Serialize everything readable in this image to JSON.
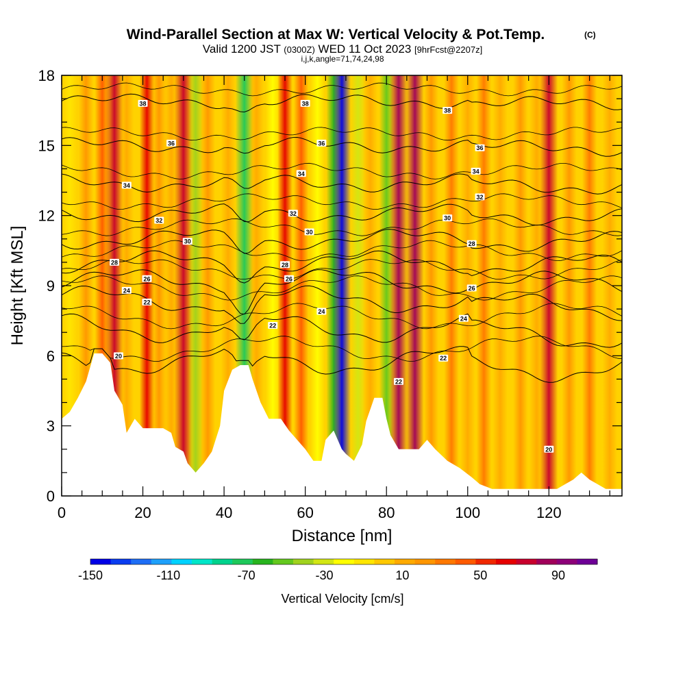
{
  "chart_data": {
    "type": "heatmap",
    "title": "Wind-Parallel Section at Max W: Vertical Velocity & Pot.Temp.",
    "title_mark": "(C)",
    "subtitle_main": "Valid 1200 JST",
    "subtitle_utc": "(0300Z)",
    "subtitle_date": "WED 11 Oct 2023",
    "subtitle_fcst": "[9hrFcst@2207z]",
    "subtitle2": "i,j,k,angle=71,74,24,98",
    "xlabel": "Distance [nm]",
    "ylabel": "Height [Kft MSL]",
    "xlim": [
      0,
      138
    ],
    "ylim": [
      0,
      18
    ],
    "xticks": [
      0,
      20,
      40,
      60,
      80,
      100,
      120
    ],
    "yticks": [
      0,
      3,
      6,
      9,
      12,
      15,
      18
    ],
    "colorbar": {
      "label": "Vertical Velocity [cm/s]",
      "range": [
        -150,
        110
      ],
      "ticks": [
        -150,
        -110,
        -70,
        -30,
        10,
        50,
        90
      ],
      "colors": [
        "#0000e6",
        "#0a3cf0",
        "#1e6ef5",
        "#1ea0fa",
        "#00d2ff",
        "#00e6c8",
        "#00d28c",
        "#1ec85a",
        "#28b41e",
        "#64c81e",
        "#a0d21e",
        "#d2e614",
        "#ffff00",
        "#ffe600",
        "#ffc800",
        "#ffaa00",
        "#ff9600",
        "#ff7800",
        "#ff5a00",
        "#f02800",
        "#e60000",
        "#c8002d",
        "#a0005a",
        "#8c0078",
        "#6e0096"
      ]
    },
    "vertical_velocity_streaks": [
      {
        "x": 2,
        "w": -10
      },
      {
        "x": 6,
        "w": 20
      },
      {
        "x": 10,
        "w": 40
      },
      {
        "x": 13,
        "w": 70
      },
      {
        "x": 16,
        "w": 15
      },
      {
        "x": 21,
        "w": 60
      },
      {
        "x": 24,
        "w": 20
      },
      {
        "x": 27,
        "w": 10
      },
      {
        "x": 30,
        "w": 75
      },
      {
        "x": 33,
        "w": -45
      },
      {
        "x": 36,
        "w": 20
      },
      {
        "x": 41,
        "w": 10
      },
      {
        "x": 45,
        "w": -75
      },
      {
        "x": 48,
        "w": 15
      },
      {
        "x": 52,
        "w": -15
      },
      {
        "x": 55,
        "w": 60
      },
      {
        "x": 59,
        "w": 40
      },
      {
        "x": 63,
        "w": -20
      },
      {
        "x": 67,
        "w": -60
      },
      {
        "x": 69,
        "w": -150
      },
      {
        "x": 73,
        "w": -30
      },
      {
        "x": 76,
        "w": 15
      },
      {
        "x": 80,
        "w": -55
      },
      {
        "x": 83,
        "w": 80
      },
      {
        "x": 87,
        "w": 85
      },
      {
        "x": 91,
        "w": 25
      },
      {
        "x": 96,
        "w": 30
      },
      {
        "x": 100,
        "w": 10
      },
      {
        "x": 104,
        "w": 35
      },
      {
        "x": 108,
        "w": 15
      },
      {
        "x": 113,
        "w": 25
      },
      {
        "x": 117,
        "w": 10
      },
      {
        "x": 120,
        "w": 75
      },
      {
        "x": 125,
        "w": 20
      },
      {
        "x": 130,
        "w": 30
      },
      {
        "x": 135,
        "w": 10
      }
    ],
    "terrain_height_kft": [
      [
        0,
        3.3
      ],
      [
        2,
        3.6
      ],
      [
        4,
        4.2
      ],
      [
        6,
        4.9
      ],
      [
        8,
        6.1
      ],
      [
        10,
        6.1
      ],
      [
        12,
        5.7
      ],
      [
        13,
        4.5
      ],
      [
        15,
        3.9
      ],
      [
        16,
        2.7
      ],
      [
        18,
        3.3
      ],
      [
        20,
        2.9
      ],
      [
        22,
        2.9
      ],
      [
        25,
        2.9
      ],
      [
        27,
        2.7
      ],
      [
        28,
        2.1
      ],
      [
        30,
        1.9
      ],
      [
        31,
        1.4
      ],
      [
        33,
        1.0
      ],
      [
        35,
        1.4
      ],
      [
        37,
        1.9
      ],
      [
        39,
        3.0
      ],
      [
        40,
        4.5
      ],
      [
        42,
        5.4
      ],
      [
        44,
        5.6
      ],
      [
        46,
        5.6
      ],
      [
        47,
        5.0
      ],
      [
        49,
        4.0
      ],
      [
        51,
        3.3
      ],
      [
        54,
        3.3
      ],
      [
        56,
        2.8
      ],
      [
        58,
        2.4
      ],
      [
        60,
        2.0
      ],
      [
        62,
        1.5
      ],
      [
        64,
        1.5
      ],
      [
        65,
        2.4
      ],
      [
        67,
        2.8
      ],
      [
        69,
        2.0
      ],
      [
        70,
        1.8
      ],
      [
        72,
        1.5
      ],
      [
        74,
        2.2
      ],
      [
        75,
        3.2
      ],
      [
        77,
        4.2
      ],
      [
        79,
        4.2
      ],
      [
        80,
        3.3
      ],
      [
        81,
        2.6
      ],
      [
        83,
        2.0
      ],
      [
        85,
        2.0
      ],
      [
        88,
        2.0
      ],
      [
        90,
        2.4
      ],
      [
        92,
        2.0
      ],
      [
        95,
        1.5
      ],
      [
        98,
        1.2
      ],
      [
        101,
        0.8
      ],
      [
        103,
        0.5
      ],
      [
        106,
        0.3
      ],
      [
        110,
        0.3
      ],
      [
        118,
        0.3
      ],
      [
        122,
        0.3
      ],
      [
        124,
        0.5
      ],
      [
        126,
        0.7
      ],
      [
        128,
        1.0
      ],
      [
        130,
        0.7
      ],
      [
        132,
        0.5
      ],
      [
        134,
        0.3
      ],
      [
        138,
        0.3
      ]
    ],
    "isentropes": [
      {
        "theta": "38",
        "height_kft": 16.9,
        "amp": 0.35
      },
      {
        "theta": "36",
        "height_kft": 15.0,
        "amp": 0.4
      },
      {
        "theta": "34",
        "height_kft": 13.4,
        "amp": 0.5
      },
      {
        "theta": "32",
        "height_kft": 12.1,
        "amp": 0.5
      },
      {
        "theta": "30",
        "height_kft": 11.0,
        "amp": 0.6
      },
      {
        "theta": "28",
        "height_kft": 10.0,
        "amp": 0.7
      },
      {
        "theta": "26",
        "height_kft": 9.2,
        "amp": 0.8
      },
      {
        "theta": "24",
        "height_kft": 8.4,
        "amp": 0.9
      },
      {
        "theta": "22",
        "height_kft": 7.2,
        "amp": 1.0
      },
      {
        "theta": "20",
        "height_kft": 5.8,
        "amp": 1.0
      }
    ],
    "contour_labels": [
      {
        "text": "38",
        "x": 20,
        "y": 16.8
      },
      {
        "text": "38",
        "x": 60,
        "y": 16.8
      },
      {
        "text": "38",
        "x": 95,
        "y": 16.5
      },
      {
        "text": "36",
        "x": 27,
        "y": 15.1
      },
      {
        "text": "36",
        "x": 64,
        "y": 15.1
      },
      {
        "text": "36",
        "x": 103,
        "y": 14.9
      },
      {
        "text": "34",
        "x": 16,
        "y": 13.3
      },
      {
        "text": "34",
        "x": 59,
        "y": 13.8
      },
      {
        "text": "34",
        "x": 102,
        "y": 13.9
      },
      {
        "text": "32",
        "x": 24,
        "y": 11.8
      },
      {
        "text": "32",
        "x": 57,
        "y": 12.1
      },
      {
        "text": "32",
        "x": 103,
        "y": 12.8
      },
      {
        "text": "30",
        "x": 31,
        "y": 10.9
      },
      {
        "text": "30",
        "x": 61,
        "y": 11.3
      },
      {
        "text": "30",
        "x": 95,
        "y": 11.9
      },
      {
        "text": "28",
        "x": 13,
        "y": 10.0
      },
      {
        "text": "28",
        "x": 55,
        "y": 9.9
      },
      {
        "text": "28",
        "x": 101,
        "y": 10.8
      },
      {
        "text": "26",
        "x": 21,
        "y": 9.3
      },
      {
        "text": "26",
        "x": 56,
        "y": 9.3
      },
      {
        "text": "26",
        "x": 101,
        "y": 8.9
      },
      {
        "text": "24",
        "x": 16,
        "y": 8.8
      },
      {
        "text": "24",
        "x": 64,
        "y": 7.9
      },
      {
        "text": "24",
        "x": 99,
        "y": 7.6
      },
      {
        "text": "22",
        "x": 21,
        "y": 8.3
      },
      {
        "text": "22",
        "x": 52,
        "y": 7.3
      },
      {
        "text": "22",
        "x": 94,
        "y": 5.9
      },
      {
        "text": "22",
        "x": 83,
        "y": 4.9
      },
      {
        "text": "20",
        "x": 14,
        "y": 6.0
      },
      {
        "text": "20",
        "x": 120,
        "y": 2.0
      }
    ]
  }
}
